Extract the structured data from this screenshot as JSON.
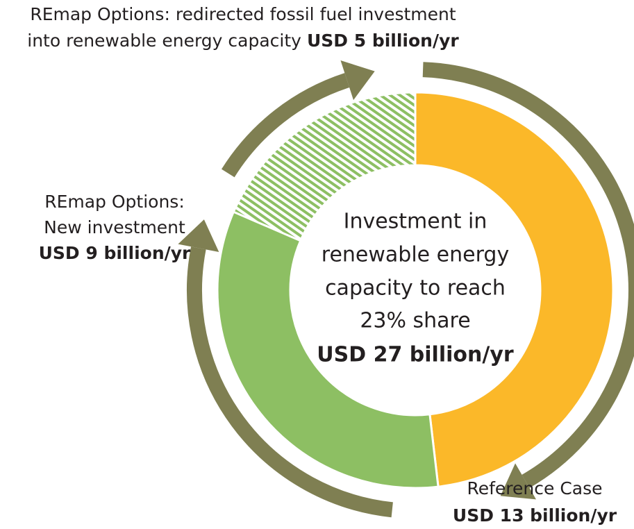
{
  "chart_data": {
    "type": "donut",
    "categories": [
      [
        "Reference Case"
      ],
      [
        "REmap Options:",
        "New investment"
      ],
      [
        "REmap Options: redirected fossil fuel investment",
        "into renewable energy capacity"
      ]
    ],
    "values": [
      13,
      9,
      5
    ],
    "value_labels": [
      "USD 13 billion/yr",
      "USD 9 billion/yr",
      "USD 5 billion/yr"
    ],
    "colors": [
      "#fbb829",
      "#8dbf63",
      "hatched"
    ],
    "center_text": [
      "Investment in",
      "renewable energy",
      "capacity to reach",
      "23% share",
      "USD 27 billion/yr"
    ]
  }
}
